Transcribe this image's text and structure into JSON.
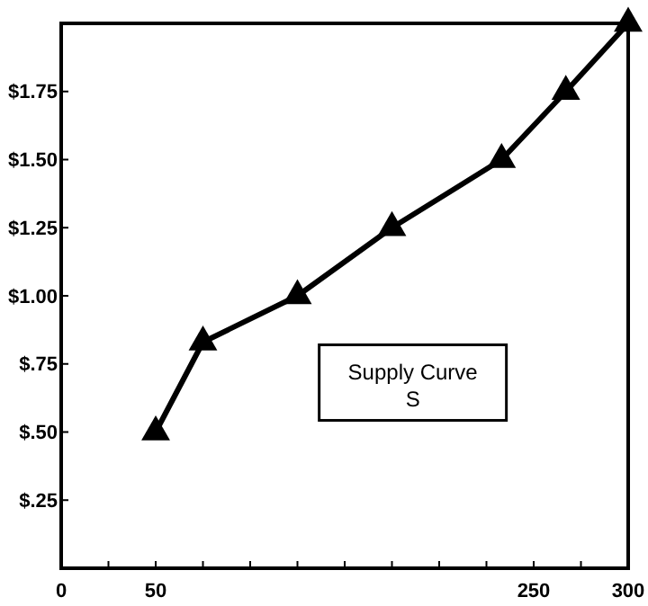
{
  "chart_data": {
    "type": "line",
    "x": [
      50,
      75,
      125,
      175,
      233,
      267,
      300
    ],
    "values": [
      0.5,
      0.83,
      1.0,
      1.25,
      1.5,
      1.75,
      2.0
    ],
    "color": "#000000",
    "marker": "triangle",
    "line_style": "solid",
    "grid": false,
    "xlim": [
      0,
      300
    ],
    "xticks": [
      0,
      {
        "value": 25,
        "label": null
      },
      50,
      {
        "value": 75,
        "label": null
      },
      {
        "value": 100,
        "label": null
      },
      {
        "value": 125,
        "label": null
      },
      {
        "value": 150,
        "label": null
      },
      {
        "value": 175,
        "label": null
      },
      {
        "value": 200,
        "label": null
      },
      {
        "value": 225,
        "label": null
      },
      250,
      {
        "value": 275,
        "label": null
      },
      300
    ],
    "ylim": [
      0,
      2
    ],
    "yticks": [
      {
        "value": 0,
        "label": null
      },
      {
        "value": 0.25,
        "label": "$.25"
      },
      {
        "value": 0.5,
        "label": "$.50"
      },
      {
        "value": 0.75,
        "label": "$.75"
      },
      {
        "value": 1,
        "label": "$1.00"
      },
      {
        "value": 1.25,
        "label": "$1.25"
      },
      {
        "value": 1.5,
        "label": "$1.50"
      },
      {
        "value": 1.75,
        "label": "$1.75"
      },
      {
        "value": 2,
        "label": null
      }
    ],
    "annotations": [
      "Supply Curve\nS"
    ]
  }
}
